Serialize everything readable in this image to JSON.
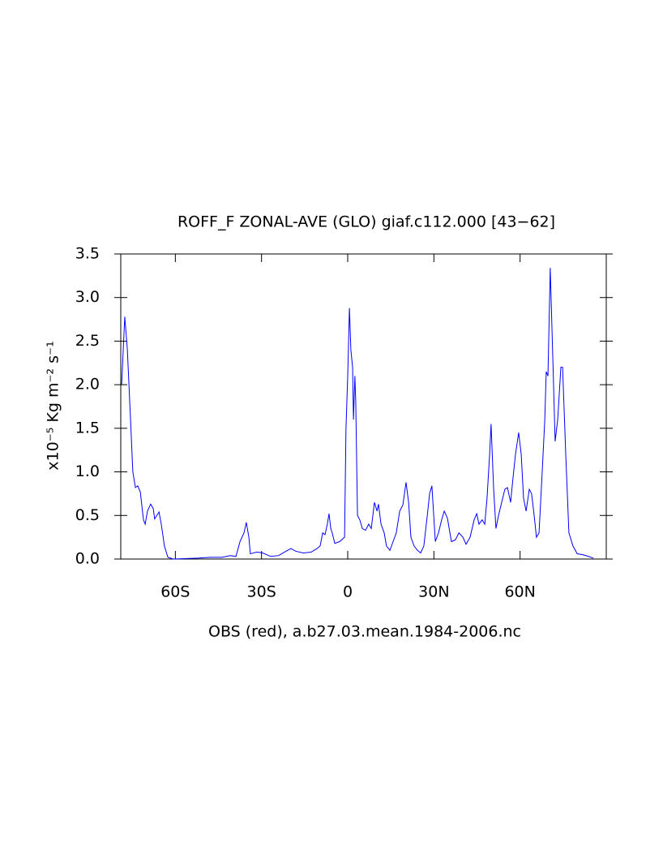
{
  "chart_data": {
    "type": "line",
    "title": "ROFF_F ZONAL-AVE (GLO) giaf.c112.000 [43−62]",
    "x_label": "OBS (red), a.b27.03.mean.1984-2006.nc",
    "y_label": "x10⁻⁵ Kg m⁻² s⁻¹",
    "xlim": [
      -79,
      90
    ],
    "ylim": [
      0,
      3.5
    ],
    "xticks": [
      {
        "value": -60,
        "label": "60S"
      },
      {
        "value": -30,
        "label": "30S"
      },
      0,
      {
        "value": 30,
        "label": "30N"
      },
      {
        "value": 60,
        "label": "60N"
      }
    ],
    "yticks": [
      {
        "value": 0,
        "label": "0.0"
      },
      0.5,
      {
        "value": 1,
        "label": "1.0"
      },
      1.5,
      {
        "value": 2,
        "label": "2.0"
      },
      2.5,
      {
        "value": 3,
        "label": "3.0"
      },
      3.5
    ],
    "series": [
      {
        "color": "#0000ff",
        "x": [
          -78.7,
          -77.6,
          -76.7,
          -75.6,
          -74.8,
          -73.9,
          -73.1,
          -72.2,
          -71.1,
          -70.5,
          -69.7,
          -68.6,
          -67.7,
          -67.2,
          -65.7,
          -64.9,
          -63.8,
          -62.6,
          -60.7,
          -52.2,
          -48,
          -43.7,
          -40.9,
          -38.9,
          -37.5,
          -36.1,
          -35.3,
          -34.4,
          -33.9,
          -31.6,
          -29.6,
          -26.8,
          -24,
          -22,
          -19.8,
          -18.1,
          -15.5,
          -12.7,
          -10.7,
          -9.6,
          -8.7,
          -7.9,
          -7.1,
          -6.5,
          -5.9,
          -5.4,
          -4.5,
          -2.8,
          -1.1,
          -0.6,
          0,
          0.6,
          1.1,
          1.7,
          2.0,
          2.5,
          2.8,
          3.4,
          4.2,
          5.1,
          6.2,
          7.3,
          8.2,
          9.3,
          10.2,
          10.7,
          11.6,
          12.7,
          13.5,
          14.7,
          15.8,
          16.9,
          18.1,
          19.2,
          20.3,
          21.2,
          22,
          23.1,
          24.3,
          25.4,
          26.5,
          27.7,
          28.5,
          29.3,
          30.5,
          31.6,
          32.7,
          33.6,
          34.7,
          36.1,
          37.5,
          38.7,
          40.1,
          41.2,
          42.6,
          44,
          44.9,
          45.7,
          46.8,
          47.7,
          48.5,
          49.4,
          49.9,
          50.8,
          51.6,
          52.5,
          53.6,
          54.7,
          55.6,
          56.7,
          57.6,
          58.4,
          59.5,
          60.4,
          61.2,
          62.1,
          63.2,
          64,
          64.9,
          65.7,
          66.6,
          67.7,
          68.6,
          69.1,
          69.7,
          70.5,
          71.4,
          72.2,
          73.1,
          74.2,
          74.8,
          75.9,
          77,
          78.4,
          79.9,
          81.8,
          83.8,
          85.5
        ],
        "values": [
          2.0,
          2.78,
          2.4,
          1.6,
          1.0,
          0.82,
          0.84,
          0.77,
          0.45,
          0.4,
          0.55,
          0.63,
          0.58,
          0.46,
          0.54,
          0.4,
          0.15,
          0.02,
          0.0,
          0.01,
          0.02,
          0.02,
          0.04,
          0.03,
          0.2,
          0.3,
          0.42,
          0.25,
          0.06,
          0.08,
          0.07,
          0.03,
          0.04,
          0.08,
          0.12,
          0.09,
          0.07,
          0.08,
          0.12,
          0.15,
          0.3,
          0.28,
          0.4,
          0.52,
          0.35,
          0.3,
          0.18,
          0.2,
          0.25,
          1.5,
          2.1,
          2.88,
          2.4,
          2.2,
          1.6,
          2.1,
          1.8,
          0.5,
          0.45,
          0.35,
          0.33,
          0.4,
          0.35,
          0.65,
          0.55,
          0.63,
          0.4,
          0.3,
          0.15,
          0.1,
          0.2,
          0.3,
          0.55,
          0.62,
          0.88,
          0.65,
          0.25,
          0.15,
          0.1,
          0.07,
          0.15,
          0.5,
          0.75,
          0.84,
          0.2,
          0.3,
          0.45,
          0.55,
          0.47,
          0.2,
          0.22,
          0.3,
          0.25,
          0.17,
          0.25,
          0.45,
          0.52,
          0.4,
          0.45,
          0.4,
          0.7,
          1.2,
          1.55,
          0.8,
          0.35,
          0.5,
          0.65,
          0.8,
          0.82,
          0.65,
          0.95,
          1.2,
          1.45,
          1.2,
          0.7,
          0.55,
          0.8,
          0.75,
          0.5,
          0.25,
          0.3,
          1.0,
          1.6,
          2.15,
          2.1,
          3.34,
          2.3,
          1.35,
          1.6,
          2.2,
          2.2,
          1.2,
          0.3,
          0.15,
          0.06,
          0.05,
          0.03,
          0.01
        ]
      }
    ]
  }
}
